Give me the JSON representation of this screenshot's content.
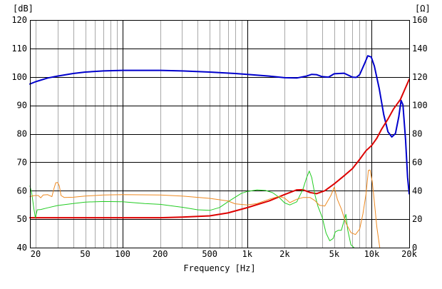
{
  "chart_data": {
    "type": "line",
    "xlabel": "Frequency [Hz]",
    "ylabel_left": "[dB]",
    "ylabel_right": "[Ω]",
    "xscale": "log",
    "xlim": [
      18,
      20000
    ],
    "ylim_left": [
      40,
      120
    ],
    "ylim_right": [
      0,
      160
    ],
    "grid": true,
    "x_ticks": [
      {
        "value": 20,
        "label": "20"
      },
      {
        "value": 50,
        "label": "50"
      },
      {
        "value": 100,
        "label": "100"
      },
      {
        "value": 200,
        "label": "200"
      },
      {
        "value": 500,
        "label": "500"
      },
      {
        "value": 1000,
        "label": "1k"
      },
      {
        "value": 2000,
        "label": "2k"
      },
      {
        "value": 5000,
        "label": "5k"
      },
      {
        "value": 10000,
        "label": "10k"
      },
      {
        "value": 20000,
        "label": "20k"
      }
    ],
    "y_ticks_left": [
      "120",
      "110",
      "100",
      "90",
      "80",
      "70",
      "60",
      "50",
      "40"
    ],
    "y_ticks_right": [
      "160",
      "140",
      "120",
      "100",
      "80",
      "60",
      "40",
      "20",
      "0"
    ],
    "series": [
      {
        "color": "#0000cc",
        "axis": "left",
        "width": 2,
        "points": [
          [
            18,
            97.5
          ],
          [
            20,
            98.3
          ],
          [
            25,
            99.6
          ],
          [
            30,
            100.3
          ],
          [
            40,
            101.2
          ],
          [
            50,
            101.7
          ],
          [
            70,
            102.1
          ],
          [
            100,
            102.3
          ],
          [
            200,
            102.3
          ],
          [
            300,
            102.1
          ],
          [
            500,
            101.7
          ],
          [
            800,
            101.2
          ],
          [
            1000,
            100.9
          ],
          [
            1500,
            100.3
          ],
          [
            2000,
            99.7
          ],
          [
            2500,
            99.6
          ],
          [
            3000,
            100.3
          ],
          [
            3300,
            100.9
          ],
          [
            3600,
            100.8
          ],
          [
            4000,
            100.1
          ],
          [
            4500,
            99.9
          ],
          [
            5000,
            101.1
          ],
          [
            6000,
            101.3
          ],
          [
            7000,
            99.9
          ],
          [
            7500,
            99.8
          ],
          [
            8000,
            100.8
          ],
          [
            8700,
            104.4
          ],
          [
            9300,
            107.4
          ],
          [
            9900,
            107.0
          ],
          [
            10500,
            103.8
          ],
          [
            11500,
            95.8
          ],
          [
            12500,
            86.7
          ],
          [
            13500,
            80.7
          ],
          [
            14500,
            78.9
          ],
          [
            15500,
            80.1
          ],
          [
            16500,
            86.0
          ],
          [
            17200,
            91.7
          ],
          [
            17800,
            90.2
          ],
          [
            18700,
            77.9
          ],
          [
            19400,
            64.8
          ],
          [
            20000,
            58.9
          ]
        ]
      },
      {
        "color": "#dd0000",
        "axis": "right",
        "width": 2,
        "points": [
          [
            18,
            21
          ],
          [
            20,
            21
          ],
          [
            30,
            21
          ],
          [
            50,
            21
          ],
          [
            100,
            21
          ],
          [
            200,
            21
          ],
          [
            300,
            21.4
          ],
          [
            500,
            22.3
          ],
          [
            700,
            24.4
          ],
          [
            1000,
            28.1
          ],
          [
            1500,
            32.8
          ],
          [
            2000,
            37.3
          ],
          [
            2500,
            40.6
          ],
          [
            2800,
            40.7
          ],
          [
            3200,
            38.7
          ],
          [
            3600,
            37.9
          ],
          [
            4200,
            40.0
          ],
          [
            5000,
            44.8
          ],
          [
            6000,
            50.5
          ],
          [
            7000,
            55.5
          ],
          [
            8000,
            62.0
          ],
          [
            9000,
            68.1
          ],
          [
            10000,
            71.8
          ],
          [
            11000,
            76.9
          ],
          [
            12000,
            83.2
          ],
          [
            13500,
            90.4
          ],
          [
            15000,
            97.6
          ],
          [
            17000,
            104.2
          ],
          [
            20000,
            118.3
          ]
        ]
      },
      {
        "color": "#22cc22",
        "axis": "left",
        "width": 1,
        "points": [
          [
            18,
            61.7
          ],
          [
            18.6,
            59.1
          ],
          [
            19.4,
            53.4
          ],
          [
            19.9,
            50.5
          ],
          [
            20.6,
            53.3
          ],
          [
            22,
            53.4
          ],
          [
            25,
            54
          ],
          [
            30,
            54.8
          ],
          [
            40,
            55.5
          ],
          [
            50,
            56
          ],
          [
            70,
            56.2
          ],
          [
            100,
            56.1
          ],
          [
            150,
            55.5
          ],
          [
            200,
            55.2
          ],
          [
            300,
            54.2
          ],
          [
            400,
            53.3
          ],
          [
            500,
            53.1
          ],
          [
            600,
            54.1
          ],
          [
            700,
            56.1
          ],
          [
            800,
            57.7
          ],
          [
            900,
            59.1
          ],
          [
            1000,
            59.7
          ],
          [
            1200,
            60.3
          ],
          [
            1400,
            60.1
          ],
          [
            1600,
            59.3
          ],
          [
            1800,
            57.7
          ],
          [
            2000,
            55.7
          ],
          [
            2200,
            55.0
          ],
          [
            2500,
            56.1
          ],
          [
            2800,
            60.5
          ],
          [
            3000,
            64.6
          ],
          [
            3150,
            66.9
          ],
          [
            3300,
            64.6
          ],
          [
            3500,
            58.5
          ],
          [
            3700,
            54.5
          ],
          [
            4000,
            50.7
          ],
          [
            4300,
            45.1
          ],
          [
            4600,
            42.4
          ],
          [
            4900,
            43.2
          ],
          [
            5100,
            45.5
          ],
          [
            5400,
            46.1
          ],
          [
            5700,
            46.1
          ],
          [
            6000,
            49.5
          ],
          [
            6200,
            51.7
          ],
          [
            6400,
            46.4
          ],
          [
            6800,
            41.0
          ],
          [
            7200,
            40.0
          ]
        ]
      },
      {
        "color": "#ee8a22",
        "axis": "left",
        "width": 1,
        "points": [
          [
            18,
            57.9
          ],
          [
            19,
            58.2
          ],
          [
            20,
            58.3
          ],
          [
            21,
            58.3
          ],
          [
            22,
            57.5
          ],
          [
            23,
            58.5
          ],
          [
            25,
            58.6
          ],
          [
            27,
            57.9
          ],
          [
            28,
            60.6
          ],
          [
            29,
            62.8
          ],
          [
            30,
            62.9
          ],
          [
            31,
            61.7
          ],
          [
            32,
            58.3
          ],
          [
            34,
            57.6
          ],
          [
            40,
            57.7
          ],
          [
            50,
            58.1
          ],
          [
            70,
            58.5
          ],
          [
            100,
            58.6
          ],
          [
            200,
            58.5
          ],
          [
            300,
            58.1
          ],
          [
            500,
            57.3
          ],
          [
            700,
            56.4
          ],
          [
            800,
            55.4
          ],
          [
            1000,
            55.0
          ],
          [
            1200,
            55.5
          ],
          [
            1500,
            57.0
          ],
          [
            1800,
            58.0
          ],
          [
            2000,
            57.4
          ],
          [
            2200,
            55.8
          ],
          [
            2500,
            57.0
          ],
          [
            2800,
            57.6
          ],
          [
            3200,
            57.6
          ],
          [
            3500,
            56.5
          ],
          [
            3800,
            54.9
          ],
          [
            4200,
            54.6
          ],
          [
            4700,
            58.3
          ],
          [
            5000,
            61.2
          ],
          [
            5300,
            56.9
          ],
          [
            5700,
            53.6
          ],
          [
            6200,
            48.6
          ],
          [
            6800,
            45.3
          ],
          [
            7400,
            44.6
          ],
          [
            8000,
            46.5
          ],
          [
            8500,
            51.9
          ],
          [
            9000,
            58.8
          ],
          [
            9400,
            67.1
          ],
          [
            9700,
            67.3
          ],
          [
            10100,
            63.1
          ],
          [
            10500,
            56.1
          ],
          [
            11000,
            47.2
          ],
          [
            11600,
            40.0
          ]
        ]
      }
    ]
  }
}
